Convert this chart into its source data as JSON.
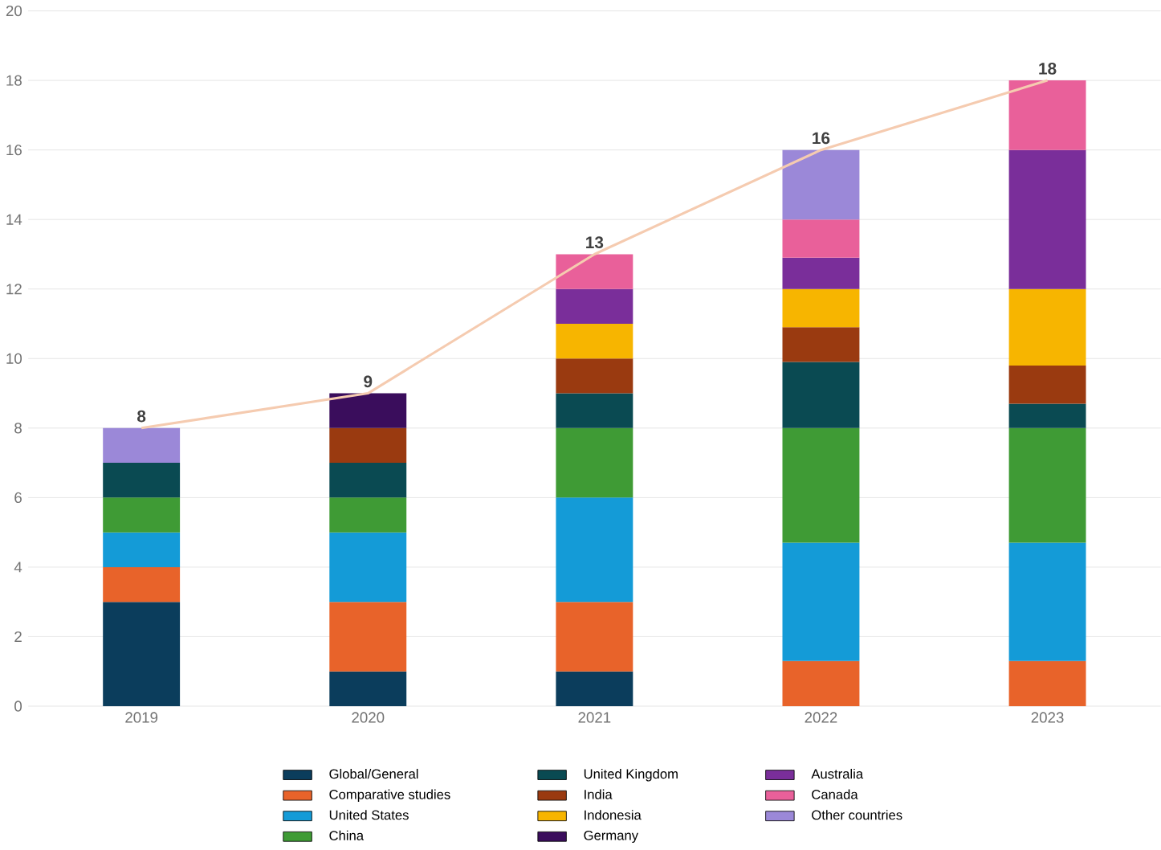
{
  "chart_data": {
    "type": "bar",
    "stacked": true,
    "categories": [
      "2019",
      "2020",
      "2021",
      "2022",
      "2023"
    ],
    "series": [
      {
        "name": "Global/General",
        "color": "#0b3d5c",
        "values": [
          3,
          1,
          1,
          null,
          null
        ]
      },
      {
        "name": "Comparative studies",
        "color": "#e8632a",
        "values": [
          1,
          2,
          2,
          1.3,
          1.3
        ]
      },
      {
        "name": "United States",
        "color": "#149bd7",
        "values": [
          1,
          2,
          3,
          3.4,
          3.4
        ]
      },
      {
        "name": "China",
        "color": "#3f9b35",
        "values": [
          1,
          1,
          2,
          3.3,
          3.3
        ]
      },
      {
        "name": "United Kingdom",
        "color": "#0a4a52",
        "values": [
          1,
          1,
          1,
          1.9,
          0.7
        ]
      },
      {
        "name": "India",
        "color": "#9a3a10",
        "values": [
          null,
          1,
          1,
          1,
          1.1
        ]
      },
      {
        "name": "Indonesia",
        "color": "#f7b500",
        "values": [
          null,
          null,
          1,
          1.1,
          2.2
        ]
      },
      {
        "name": "Germany",
        "color": "#3a0d5c",
        "values": [
          null,
          1,
          null,
          null,
          null
        ]
      },
      {
        "name": "Australia",
        "color": "#7a2e9a",
        "values": [
          null,
          null,
          1,
          0.9,
          4
        ]
      },
      {
        "name": "Canada",
        "color": "#e9609a",
        "values": [
          null,
          null,
          1,
          1.1,
          2
        ]
      },
      {
        "name": "Other countries",
        "color": "#9b88d8",
        "values": [
          1,
          null,
          null,
          2,
          null
        ]
      },
      {
        "type": "line",
        "color": "#f5cbb0",
        "values": [
          8,
          9,
          13,
          16,
          18
        ],
        "value_labels": [
          "8",
          "9",
          "13",
          "16",
          "18"
        ]
      }
    ],
    "ylim": [
      0,
      20
    ],
    "yticks": [
      0,
      2,
      4,
      6,
      8,
      10,
      12,
      14,
      16,
      18,
      20
    ],
    "grid": "y",
    "legend": "bottom",
    "marker": "none"
  }
}
